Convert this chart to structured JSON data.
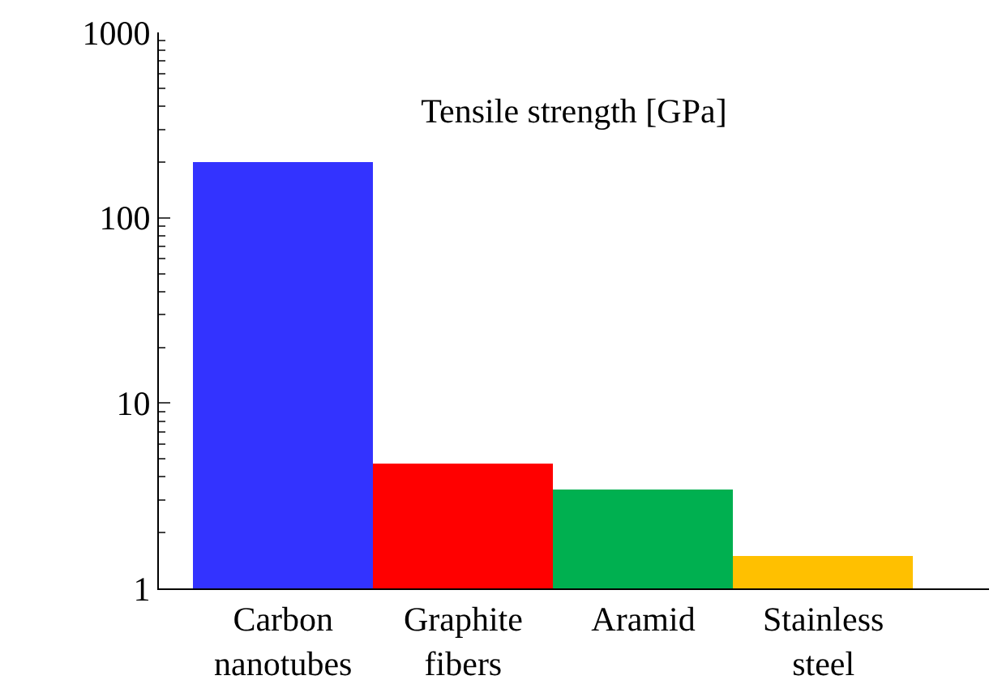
{
  "chart_data": {
    "type": "bar",
    "title": "Tensile strength [GPa]",
    "categories": [
      "Carbon\nnanotubes",
      "Graphite\nfibers",
      "Aramid",
      "Stainless\nsteel"
    ],
    "values": [
      200,
      4.7,
      3.4,
      1.5
    ],
    "colors": [
      "#3333ff",
      "#ff0000",
      "#00b050",
      "#ffc000"
    ],
    "log": true,
    "ylim": [
      1,
      1000
    ],
    "yticks": [
      1,
      10,
      100,
      1000
    ],
    "legend": false
  }
}
